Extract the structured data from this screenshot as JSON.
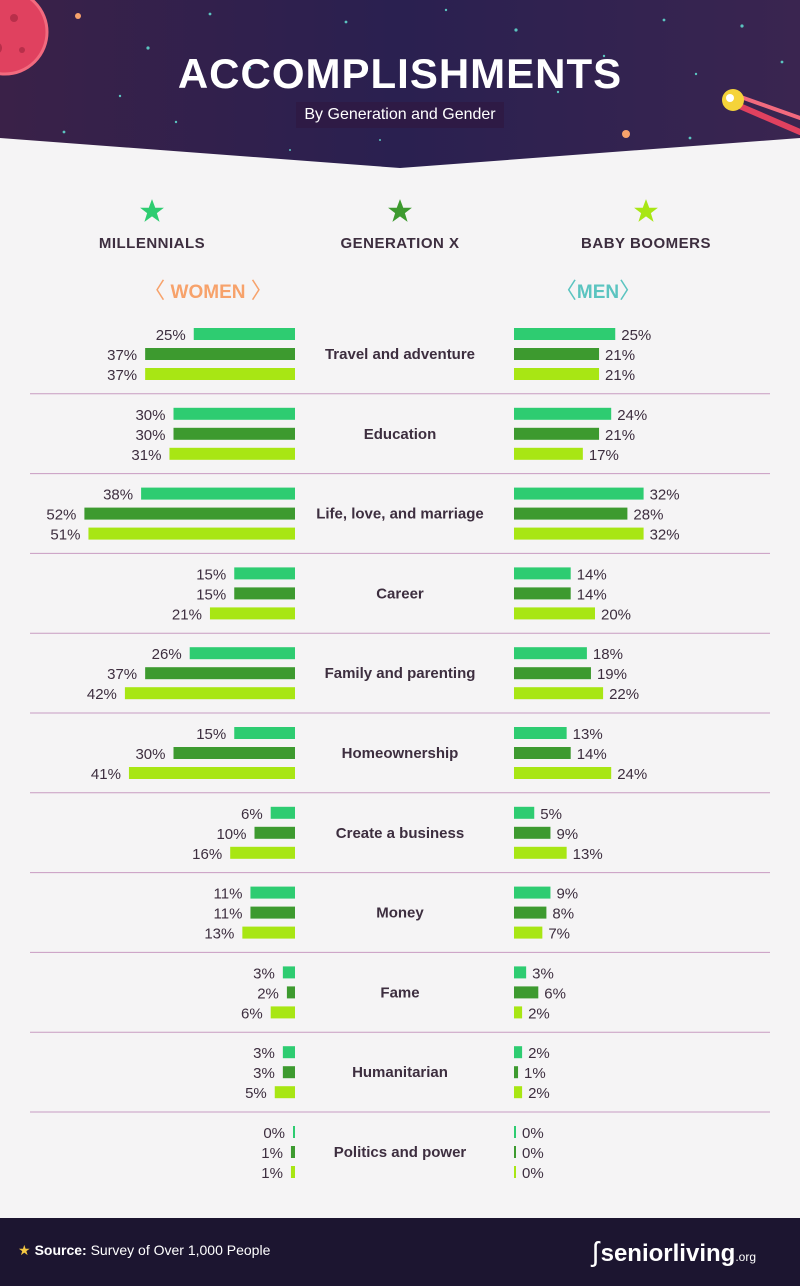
{
  "header": {
    "title": "ACCOMPLISHMENTS",
    "subtitle": "By Generation and Gender"
  },
  "legend": [
    {
      "label": "MILLENNIALS",
      "color": "#2ecc71"
    },
    {
      "label": "GENERATION X",
      "color": "#3d9a2f"
    },
    {
      "label": "BABY BOOMERS",
      "color": "#a8e614"
    }
  ],
  "genders": {
    "women": {
      "label": "WOMEN",
      "color": "#f7a26b"
    },
    "men": {
      "label": "MEN",
      "color": "#5bc4c0"
    }
  },
  "chart_data": {
    "type": "bar",
    "categories": [
      "Travel and adventure",
      "Education",
      "Life, love, and marriage",
      "Career",
      "Family and parenting",
      "Homeownership",
      "Create a business",
      "Money",
      "Fame",
      "Humanitarian",
      "Politics and power"
    ],
    "series": [
      {
        "name": "WOMEN MILLENNIALS",
        "values": [
          25,
          30,
          38,
          15,
          26,
          15,
          6,
          11,
          3,
          3,
          0
        ]
      },
      {
        "name": "WOMEN GENERATION X",
        "values": [
          37,
          30,
          52,
          15,
          37,
          30,
          10,
          11,
          2,
          3,
          1
        ]
      },
      {
        "name": "WOMEN BABY BOOMERS",
        "values": [
          37,
          31,
          51,
          21,
          42,
          41,
          16,
          13,
          6,
          5,
          1
        ]
      },
      {
        "name": "MEN MILLENNIALS",
        "values": [
          25,
          24,
          32,
          14,
          18,
          13,
          5,
          9,
          3,
          2,
          0
        ]
      },
      {
        "name": "MEN GENERATION X",
        "values": [
          21,
          21,
          28,
          14,
          19,
          14,
          9,
          8,
          6,
          1,
          0
        ]
      },
      {
        "name": "MEN BABY BOOMERS",
        "values": [
          21,
          17,
          32,
          20,
          22,
          24,
          13,
          7,
          2,
          2,
          0
        ]
      }
    ],
    "unit": "%"
  },
  "footer": {
    "source_label": "Source:",
    "source_text": "Survey of Over 1,000 People",
    "logo_text": "seniorliving",
    "logo_suffix": ".org"
  }
}
